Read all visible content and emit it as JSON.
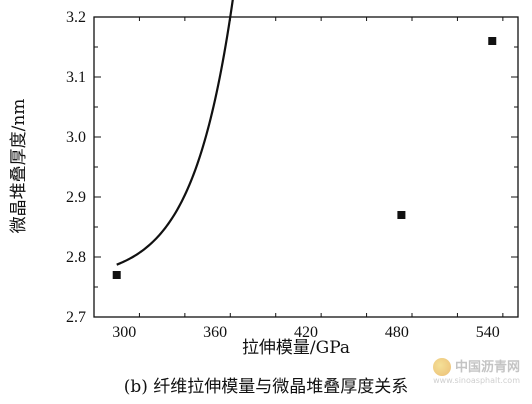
{
  "chart_data": {
    "type": "scatter",
    "xlabel": "拉伸模量/GPa",
    "ylabel": "微晶堆叠厚度/nm",
    "xlim": [
      280,
      560
    ],
    "ylim": [
      2.7,
      3.2
    ],
    "x_ticks": [
      300,
      360,
      420,
      480,
      540
    ],
    "y_ticks": [
      "2.7",
      "2.8",
      "2.9",
      "3.0",
      "3.1",
      "3.2"
    ],
    "points": [
      {
        "x": 295,
        "y": 2.77
      },
      {
        "x": 483,
        "y": 2.87
      },
      {
        "x": 543,
        "y": 3.16
      }
    ],
    "fit_curve": {
      "type": "exponential",
      "form": "y = A + B*exp(x/t)",
      "A": 2.761,
      "B": 4e-07,
      "t": 26.6
    },
    "grid": false,
    "marker_color": "#111111",
    "line_color": "#111111"
  },
  "caption": "(b) 纤维拉伸模量与微晶堆叠厚度关系",
  "watermark": {
    "text": "中国沥青网",
    "url": "www.sinoasphalt.com"
  }
}
